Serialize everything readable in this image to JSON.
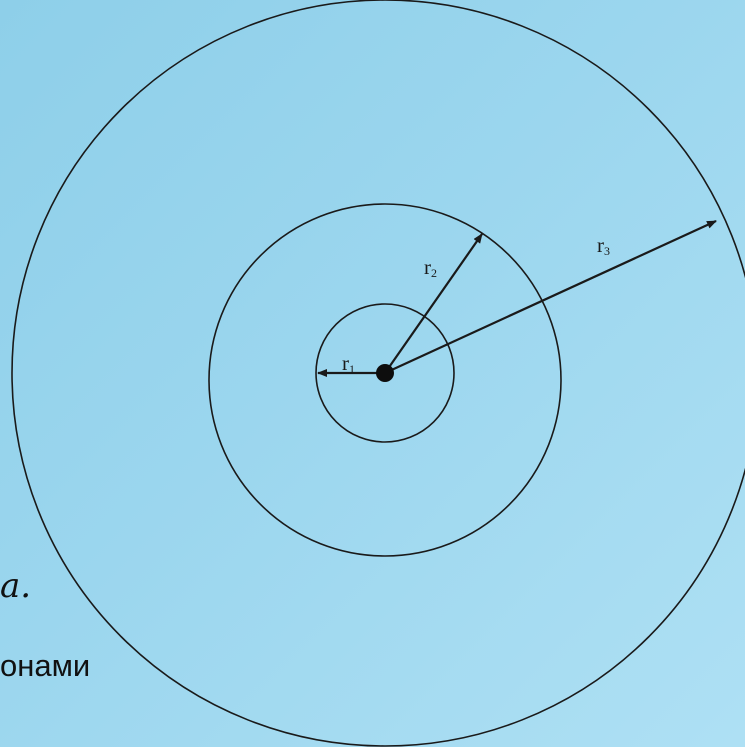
{
  "diagram": {
    "labels": {
      "r1": "r",
      "r1_sub": "1",
      "r2": "r",
      "r2_sub": "2",
      "r3": "r",
      "r3_sub": "3"
    },
    "colors": {
      "background_start": "#8ecfe9",
      "background_end": "#aee0f4",
      "line": "#1a1a1a"
    }
  },
  "fragments": {
    "formula_tail": "a.",
    "text_tail": "онами"
  }
}
